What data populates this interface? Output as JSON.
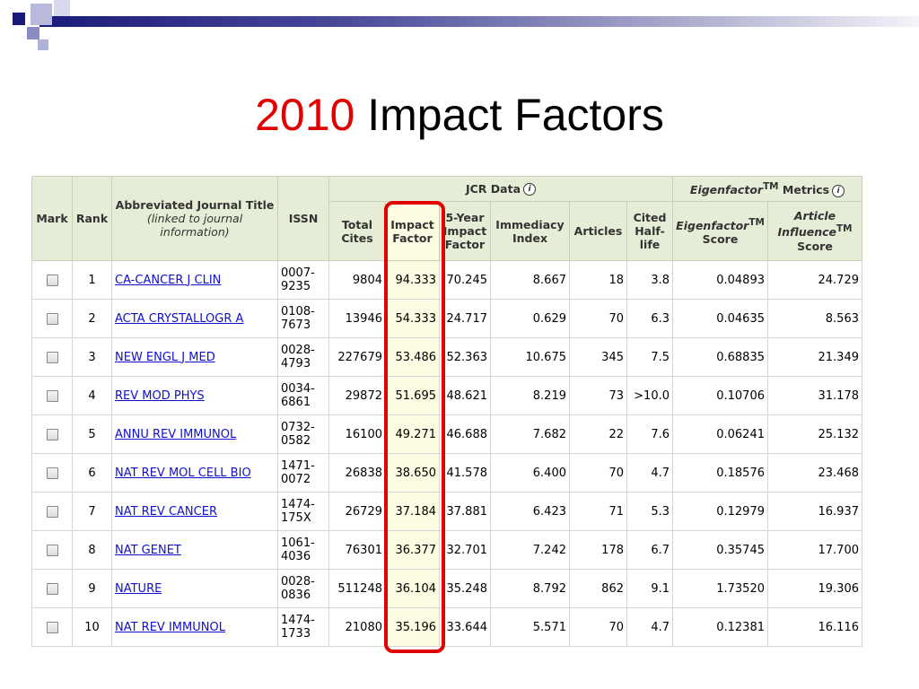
{
  "title": {
    "year": "2010",
    "rest": " Impact Factors"
  },
  "accent_colors": {
    "title_year": "#e00000",
    "highlight_box": "#e00000",
    "header_bg": "#e6edd6",
    "link": "#1010cc"
  },
  "table": {
    "group_headers": {
      "jcr": "JCR Data",
      "eigen_prefix": "Eigenfactor",
      "eigen_tm": "TM",
      "eigen_suffix": " Metrics"
    },
    "headers": {
      "mark": "Mark",
      "rank": "Rank",
      "title_main": "Abbreviated Journal Title",
      "title_sub": "(linked to journal information)",
      "issn": "ISSN",
      "total_cites": "Total Cites",
      "impact_factor": "Impact Factor",
      "five_year": "5-Year Impact Factor",
      "immediacy": "Immediacy Index",
      "articles": "Articles",
      "half_life": "Cited Half-life",
      "eigen_score_a": "Eigenfactor",
      "eigen_score_tm": "TM",
      "eigen_score_b": "Score",
      "ai_a": "Article",
      "ai_b": "Influence",
      "ai_tm": "TM",
      "ai_c": "Score"
    },
    "rows": [
      {
        "rank": "1",
        "title": "CA-CANCER J CLIN",
        "issn": "0007-9235",
        "total_cites": "9804",
        "impact_factor": "94.333",
        "five_year": "70.245",
        "immediacy": "8.667",
        "articles": "18",
        "half_life": "3.8",
        "eigen": "0.04893",
        "ai": "24.729"
      },
      {
        "rank": "2",
        "title": "ACTA CRYSTALLOGR A",
        "issn": "0108-7673",
        "total_cites": "13946",
        "impact_factor": "54.333",
        "five_year": "24.717",
        "immediacy": "0.629",
        "articles": "70",
        "half_life": "6.3",
        "eigen": "0.04635",
        "ai": "8.563"
      },
      {
        "rank": "3",
        "title": "NEW ENGL J MED",
        "issn": "0028-4793",
        "total_cites": "227679",
        "impact_factor": "53.486",
        "five_year": "52.363",
        "immediacy": "10.675",
        "articles": "345",
        "half_life": "7.5",
        "eigen": "0.68835",
        "ai": "21.349"
      },
      {
        "rank": "4",
        "title": "REV MOD PHYS",
        "issn": "0034-6861",
        "total_cites": "29872",
        "impact_factor": "51.695",
        "five_year": "48.621",
        "immediacy": "8.219",
        "articles": "73",
        "half_life": ">10.0",
        "eigen": "0.10706",
        "ai": "31.178"
      },
      {
        "rank": "5",
        "title": "ANNU REV IMMUNOL",
        "issn": "0732-0582",
        "total_cites": "16100",
        "impact_factor": "49.271",
        "five_year": "46.688",
        "immediacy": "7.682",
        "articles": "22",
        "half_life": "7.6",
        "eigen": "0.06241",
        "ai": "25.132"
      },
      {
        "rank": "6",
        "title": "NAT REV MOL CELL BIO",
        "issn": "1471-0072",
        "total_cites": "26838",
        "impact_factor": "38.650",
        "five_year": "41.578",
        "immediacy": "6.400",
        "articles": "70",
        "half_life": "4.7",
        "eigen": "0.18576",
        "ai": "23.468"
      },
      {
        "rank": "7",
        "title": "NAT REV CANCER",
        "issn": "1474-175X",
        "total_cites": "26729",
        "impact_factor": "37.184",
        "five_year": "37.881",
        "immediacy": "6.423",
        "articles": "71",
        "half_life": "5.3",
        "eigen": "0.12979",
        "ai": "16.937"
      },
      {
        "rank": "8",
        "title": "NAT GENET",
        "issn": "1061-4036",
        "total_cites": "76301",
        "impact_factor": "36.377",
        "five_year": "32.701",
        "immediacy": "7.242",
        "articles": "178",
        "half_life": "6.7",
        "eigen": "0.35745",
        "ai": "17.700"
      },
      {
        "rank": "9",
        "title": "NATURE",
        "issn": "0028-0836",
        "total_cites": "511248",
        "impact_factor": "36.104",
        "five_year": "35.248",
        "immediacy": "8.792",
        "articles": "862",
        "half_life": "9.1",
        "eigen": "1.73520",
        "ai": "19.306"
      },
      {
        "rank": "10",
        "title": "NAT REV IMMUNOL",
        "issn": "1474-1733",
        "total_cites": "21080",
        "impact_factor": "35.196",
        "five_year": "33.644",
        "immediacy": "5.571",
        "articles": "70",
        "half_life": "4.7",
        "eigen": "0.12381",
        "ai": "16.116"
      }
    ]
  }
}
